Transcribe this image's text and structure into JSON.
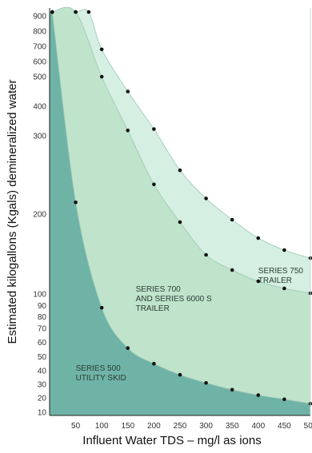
{
  "chart_data": {
    "type": "area",
    "xlabel": "Influent Water TDS – mg/l as ions",
    "ylabel": "Estimated kilogallons (Kgals) demineralized water",
    "xlim": [
      0,
      500
    ],
    "x_ticks": [
      50,
      100,
      150,
      200,
      250,
      300,
      350,
      400,
      450,
      500
    ],
    "x_tick_labels": [
      "50",
      "100",
      "150",
      "200",
      "250",
      "300",
      "350",
      "400",
      "450",
      "500"
    ],
    "y_ticks": [
      10,
      20,
      30,
      40,
      50,
      60,
      70,
      80,
      90,
      100,
      200,
      300,
      400,
      500,
      600,
      700,
      800,
      900
    ],
    "y_tick_labels": [
      "10",
      "20",
      "30",
      "40",
      "50",
      "60",
      "70",
      "80",
      "90",
      "100",
      "200",
      "300",
      "400",
      "500",
      "600",
      "700",
      "800",
      "900"
    ],
    "grid": false,
    "legend": "none",
    "series": [
      {
        "name": "SERIES 500 UTILITY SKID",
        "color": "#6fb3a6",
        "points": [
          [
            5,
            950
          ],
          [
            50,
            215
          ],
          [
            100,
            88
          ],
          [
            150,
            56
          ],
          [
            200,
            45
          ],
          [
            250,
            37
          ],
          [
            300,
            31
          ],
          [
            350,
            26
          ],
          [
            400,
            22
          ],
          [
            450,
            19
          ],
          [
            500,
            16
          ]
        ]
      },
      {
        "name": "SERIES 700 AND SERIES 6000 S TRAILER",
        "color": "#bfe3cb",
        "points": [
          [
            5,
            950
          ],
          [
            50,
            950
          ],
          [
            100,
            500
          ],
          [
            150,
            318
          ],
          [
            200,
            238
          ],
          [
            250,
            190
          ],
          [
            300,
            149
          ],
          [
            350,
            130
          ],
          [
            400,
            116
          ],
          [
            450,
            107
          ],
          [
            500,
            101
          ]
        ]
      },
      {
        "name": "SERIES 750 TRAILER",
        "color": "#d5efe2",
        "points": [
          [
            5,
            950
          ],
          [
            50,
            950
          ],
          [
            75,
            950
          ],
          [
            100,
            680
          ],
          [
            150,
            450
          ],
          [
            200,
            323
          ],
          [
            250,
            256
          ],
          [
            300,
            220
          ],
          [
            350,
            193
          ],
          [
            400,
            170
          ],
          [
            450,
            155
          ],
          [
            500,
            145
          ]
        ]
      }
    ],
    "annotations": [
      {
        "lines": [
          "SERIES 750",
          "TRAILER"
        ],
        "x": 400,
        "y": 126
      },
      {
        "lines": [
          "SERIES 700",
          "AND SERIES 6000 S",
          "TRAILER"
        ],
        "x": 165,
        "y": 103
      },
      {
        "lines": [
          "SERIES 500",
          "UTILITY SKID"
        ],
        "x": 50,
        "y": 40
      }
    ]
  }
}
